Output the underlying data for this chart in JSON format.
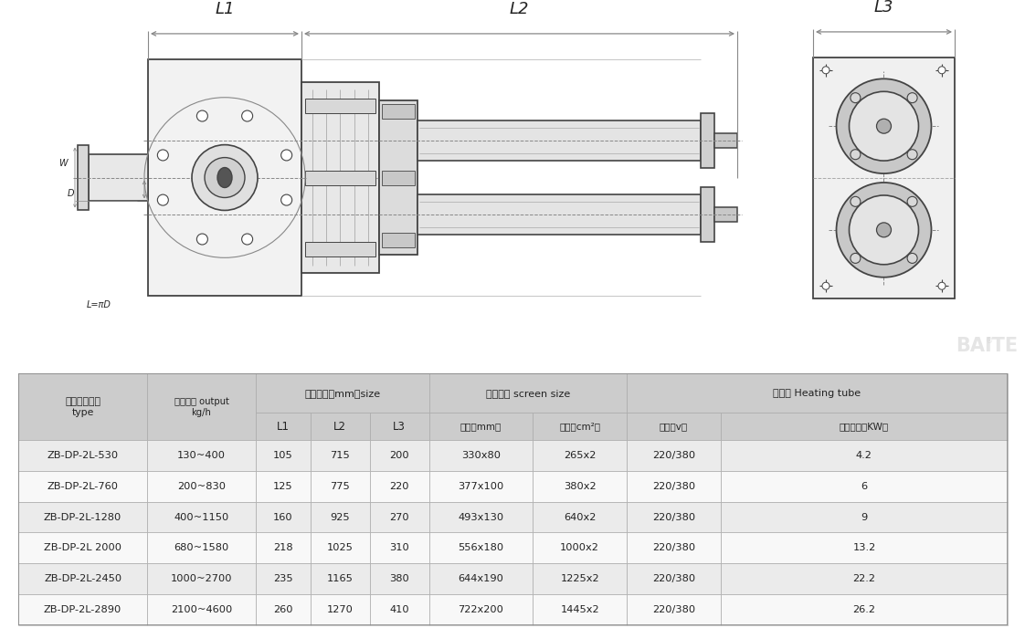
{
  "bg_color": "#ffffff",
  "table_header_bg": "#cccccc",
  "table_subheader_bg": "#cccccc",
  "table_row_bg1": "#ebebeb",
  "table_row_bg2": "#f8f8f8",
  "line_color": "#444444",
  "dim_color": "#555555",
  "text_color": "#222222",
  "dash_color": "#888888",
  "rows": [
    [
      "ZB-DP-2L-530",
      "130~400",
      "105",
      "715",
      "200",
      "330x80",
      "265x2",
      "220/380",
      "4.2"
    ],
    [
      "ZB-DP-2L-760",
      "200~830",
      "125",
      "775",
      "220",
      "377x100",
      "380x2",
      "220/380",
      "6"
    ],
    [
      "ZB-DP-2L-1280",
      "400~1150",
      "160",
      "925",
      "270",
      "493x130",
      "640x2",
      "220/380",
      "9"
    ],
    [
      "ZB-DP-2L 2000",
      "680~1580",
      "218",
      "1025",
      "310",
      "556x180",
      "1000x2",
      "220/380",
      "13.2"
    ],
    [
      "ZB-DP-2L-2450",
      "1000~2700",
      "235",
      "1165",
      "380",
      "644x190",
      "1225x2",
      "220/380",
      "22.2"
    ],
    [
      "ZB-DP-2L-2890",
      "2100~4600",
      "260",
      "1270",
      "410",
      "722x200",
      "1445x2",
      "220/380",
      "26.2"
    ]
  ]
}
